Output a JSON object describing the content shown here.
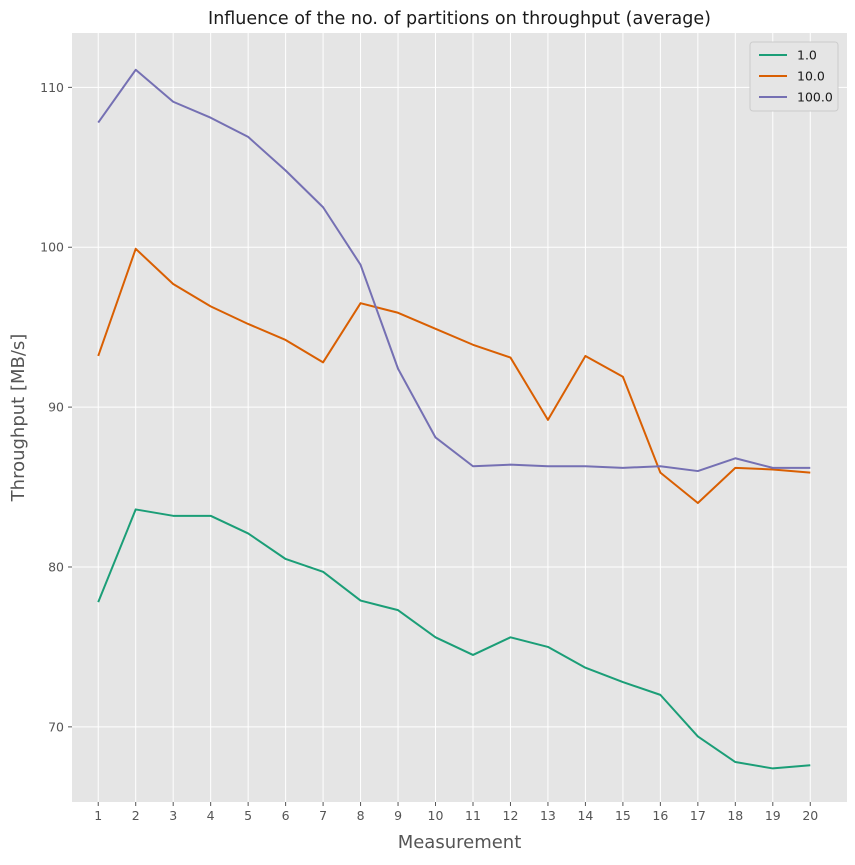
{
  "chart_data": {
    "type": "line",
    "title": "Influence of the no. of partitions on throughput (average)",
    "xlabel": "Measurement",
    "ylabel": "Throughput [MB/s]",
    "x": [
      1,
      2,
      3,
      4,
      5,
      6,
      7,
      8,
      9,
      10,
      11,
      12,
      13,
      14,
      15,
      16,
      17,
      18,
      19,
      20
    ],
    "xlim": [
      0.3,
      20.98
    ],
    "ylim": [
      65.3,
      113.4
    ],
    "yticks": [
      70,
      80,
      90,
      100,
      110
    ],
    "grid": true,
    "legend_position": "top-right",
    "background": "#e5e5e5",
    "series": [
      {
        "name": "1.0",
        "color": "#1b9e77",
        "values": [
          77.8,
          83.6,
          83.2,
          83.2,
          82.1,
          80.5,
          79.7,
          77.9,
          77.3,
          75.6,
          74.5,
          75.6,
          75.0,
          73.7,
          72.8,
          72.0,
          69.4,
          67.8,
          67.4,
          67.6
        ]
      },
      {
        "name": "10.0",
        "color": "#d95f02",
        "values": [
          93.2,
          99.9,
          97.7,
          96.3,
          95.2,
          94.2,
          92.8,
          96.5,
          95.9,
          94.9,
          93.9,
          93.1,
          89.2,
          93.2,
          91.9,
          85.9,
          84.0,
          86.2,
          86.1,
          85.9
        ]
      },
      {
        "name": "100.0",
        "color": "#7570b3",
        "values": [
          107.8,
          111.1,
          109.1,
          108.1,
          106.9,
          104.8,
          102.5,
          98.9,
          92.4,
          88.1,
          86.3,
          86.4,
          86.3,
          86.3,
          86.2,
          86.3,
          86.0,
          86.8,
          86.2,
          86.2
        ]
      }
    ]
  }
}
